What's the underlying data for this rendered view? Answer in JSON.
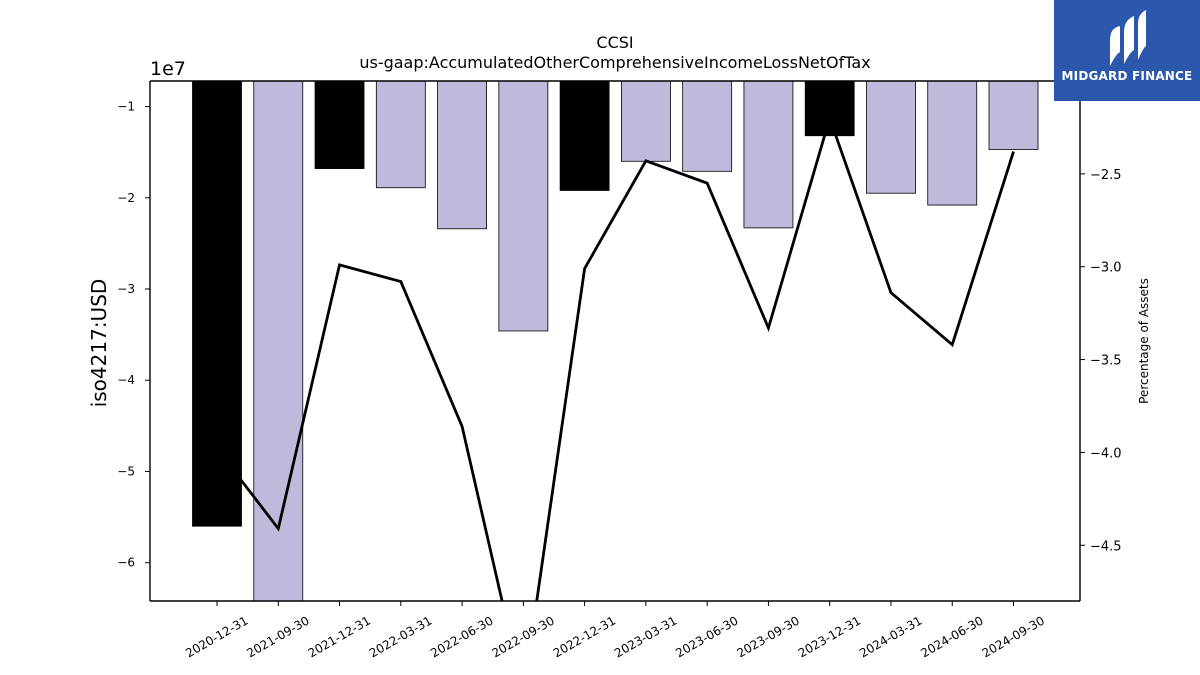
{
  "chart_data": {
    "type": "bar",
    "title": "CCSI",
    "subtitle": "us-gaap:AccumulatedOtherComprehensiveIncomeLossNetOfTax",
    "ylabel": "iso4217:USD",
    "y2label": "Percentage of Assets",
    "y_offset_label": "1e7",
    "categories": [
      "2020-12-31",
      "2021-09-30",
      "2021-12-31",
      "2022-03-31",
      "2022-06-30",
      "2022-09-30",
      "2022-12-31",
      "2023-03-31",
      "2023-06-30",
      "2023-09-30",
      "2023-12-31",
      "2024-03-31",
      "2024-06-30",
      "2024-09-30"
    ],
    "series": [
      {
        "type": "bar",
        "values": [
          -56000000,
          -65000000,
          -16800000,
          -18900000,
          -23400000,
          -34600000,
          -19200000,
          -16000000,
          -17100000,
          -23300000,
          -13200000,
          -19500000,
          -20800000,
          -14700000
        ],
        "colors": [
          "#000000",
          "#bebadb",
          "#000000",
          "#bebadb",
          "#bebadb",
          "#bebadb",
          "#000000",
          "#bebadb",
          "#bebadb",
          "#bebadb",
          "#000000",
          "#bebadb",
          "#bebadb",
          "#bebadb"
        ]
      },
      {
        "type": "line",
        "axis": "right",
        "values": [
          -3.98,
          -4.41,
          -2.99,
          -3.08,
          -3.86,
          -5.3,
          -3.01,
          -2.43,
          -2.55,
          -3.33,
          -2.2,
          -3.14,
          -3.42,
          -2.38
        ]
      }
    ],
    "ylim": [
      -64200000,
      -7200000
    ],
    "y2lim": [
      -4.8,
      -2.0
    ],
    "yticks": [
      -60000000,
      -50000000,
      -40000000,
      -30000000,
      -20000000,
      -10000000
    ],
    "ytick_labels": [
      "−6",
      "−5",
      "−4",
      "−3",
      "−2",
      "−1"
    ],
    "y2ticks": [
      -4.5,
      -4.0,
      -3.5,
      -3.0,
      -2.5
    ],
    "y2tick_labels": [
      "−4.5",
      "−4.0",
      "−3.5",
      "−3.0",
      "−2.5"
    ],
    "grid": false,
    "colors": {
      "black_bar": "#000000",
      "light_bar": "#bebadb",
      "line": "#000000"
    }
  },
  "logo": {
    "text": "MIDGARD FINANCE",
    "background": "#2b58ad"
  }
}
